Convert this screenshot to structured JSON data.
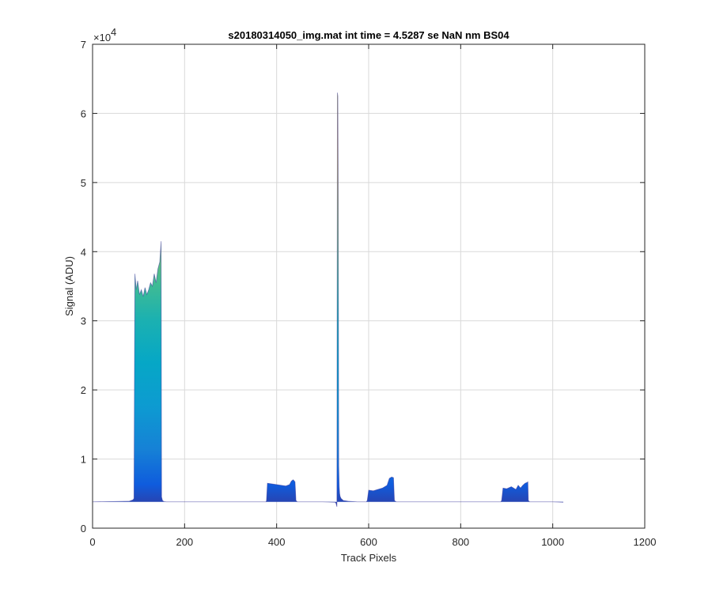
{
  "chart_data": {
    "type": "area",
    "title": "s20180314050_img.mat int time = 4.5287 se  NaN nm BS04",
    "xlabel": "Track Pixels",
    "ylabel": "Signal (ADU)",
    "xlim": [
      0,
      1200
    ],
    "ylim": [
      0,
      70000
    ],
    "xticks": [
      0,
      200,
      400,
      600,
      800,
      1000,
      1200
    ],
    "yticks": [
      0,
      1,
      2,
      3,
      4,
      5,
      6,
      7
    ],
    "y_exponent_label": "×10",
    "y_exponent_power": "4",
    "grid": true,
    "baseline": 3800,
    "series": [
      {
        "x": [
          0,
          80,
          88,
          90,
          92,
          95,
          98,
          102,
          106,
          110,
          114,
          118,
          122,
          126,
          130,
          134,
          138,
          142,
          146,
          148,
          149,
          150,
          152,
          155,
          160,
          200,
          300,
          377,
          378,
          380,
          390,
          400,
          410,
          420,
          428,
          432,
          436,
          440,
          442,
          445,
          500,
          527,
          529,
          531,
          532,
          533,
          534,
          535,
          536,
          537,
          538,
          540,
          545,
          555,
          575,
          595,
          597,
          600,
          610,
          620,
          630,
          640,
          645,
          650,
          654,
          656,
          660,
          700,
          800,
          887,
          889,
          892,
          900,
          910,
          920,
          925,
          930,
          935,
          940,
          944,
          946,
          947,
          950,
          1000,
          1023
        ],
        "y": [
          3800,
          3900,
          4100,
          4300,
          36800,
          34500,
          35800,
          33800,
          34500,
          33500,
          34800,
          33800,
          34500,
          35500,
          35000,
          36800,
          35500,
          37500,
          38500,
          40500,
          41500,
          4500,
          4000,
          3850,
          3800,
          3800,
          3800,
          3800,
          4000,
          6500,
          6400,
          6300,
          6200,
          6100,
          6300,
          6800,
          7000,
          6700,
          4000,
          3800,
          3800,
          3750,
          3600,
          3100,
          63000,
          62500,
          47000,
          9000,
          6000,
          5000,
          4600,
          4300,
          4000,
          3900,
          3800,
          3800,
          4000,
          5500,
          5400,
          5600,
          5800,
          6200,
          7200,
          7400,
          7300,
          4000,
          3800,
          3800,
          3800,
          3800,
          4000,
          5800,
          5700,
          6000,
          5600,
          6200,
          5800,
          6200,
          6500,
          6600,
          6700,
          4000,
          3800,
          3800,
          3750
        ]
      }
    ]
  }
}
